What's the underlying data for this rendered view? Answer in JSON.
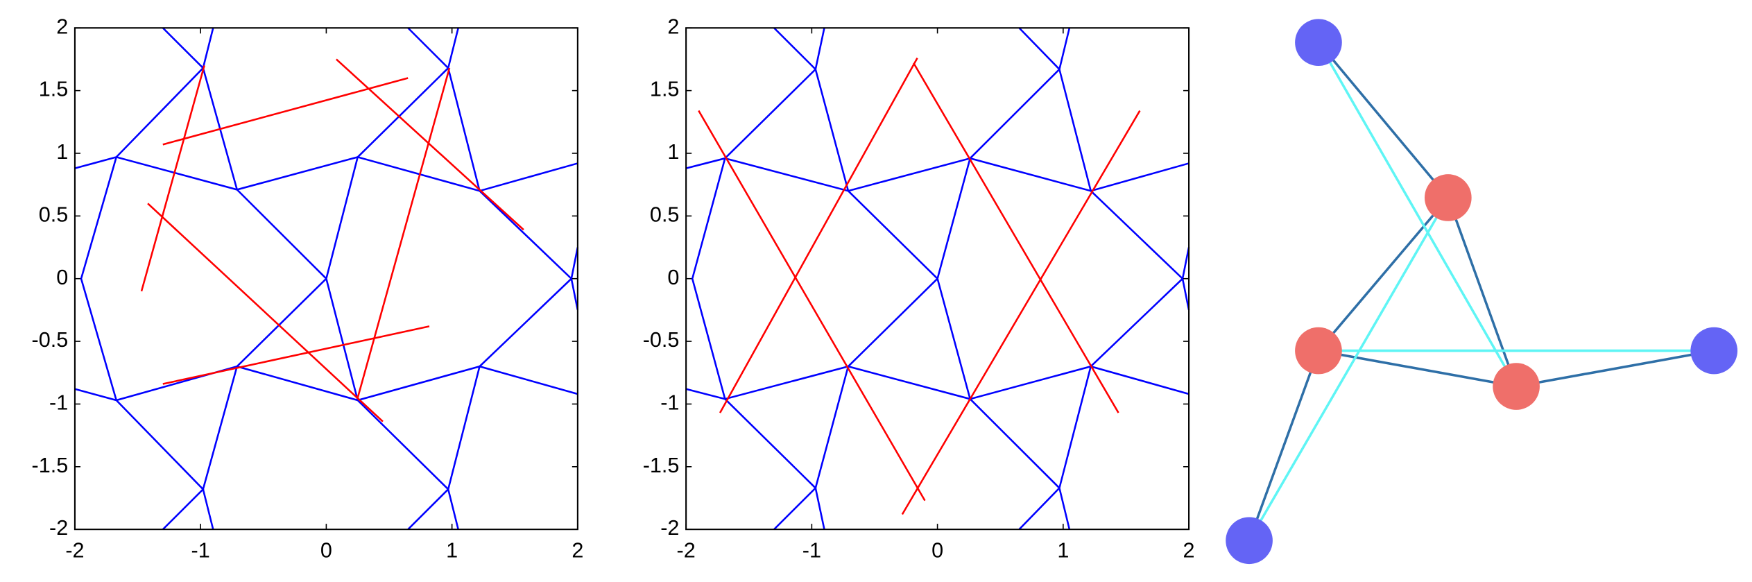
{
  "chart_data": [
    {
      "type": "line",
      "xlim": [
        -2,
        2
      ],
      "ylim": [
        -2,
        2
      ],
      "xticks": [
        -2,
        -1,
        0,
        1,
        2
      ],
      "yticks": [
        -2,
        -1.5,
        -1,
        -0.5,
        0,
        0.5,
        1,
        1.5,
        2
      ],
      "series": [
        {
          "color": "#0000ff",
          "x": [
            -2,
            -1.67,
            -0.71,
            0.25,
            1.22,
            2,
            null,
            -1.3,
            -0.98,
            -0.71,
            0,
            0.25,
            0.97,
            1.05,
            null,
            -0.9,
            -0.98,
            -1.67,
            -1.95,
            -1.67,
            -0.98,
            -1.3,
            null,
            0.65,
            0.97,
            0.25,
            0,
            -0.71,
            -0.98,
            -0.9,
            null,
            1.05,
            0.97,
            1.22,
            1.95,
            1.22,
            0.97,
            0.65,
            null,
            -2,
            -1.67,
            -0.71,
            0.25,
            1.22,
            2,
            null,
            2,
            1.95,
            2
          ],
          "values": [
            0.88,
            0.97,
            0.71,
            0.97,
            0.7,
            0.92,
            null,
            2,
            1.68,
            0.71,
            0,
            -0.97,
            -1.68,
            -2,
            null,
            2,
            1.68,
            0.97,
            0,
            -0.97,
            -1.68,
            -2,
            null,
            2,
            1.68,
            0.97,
            0,
            -0.7,
            -1.68,
            -2,
            null,
            2,
            1.68,
            0.7,
            0,
            -0.7,
            -1.68,
            -2,
            null,
            -0.88,
            -0.97,
            -0.7,
            -0.97,
            -0.7,
            -0.92,
            null,
            0.25,
            0,
            -0.25
          ]
        },
        {
          "color": "#ff0000",
          "x": [
            -1.47,
            -0.97,
            null,
            -1.3,
            0.65,
            null,
            0.08,
            1.57,
            null,
            -1.42,
            0.45,
            null,
            -1.3,
            0.82,
            null,
            0.25,
            0.98
          ],
          "values": [
            -0.1,
            1.7,
            null,
            1.07,
            1.6,
            null,
            1.75,
            0.39,
            null,
            0.6,
            -1.14,
            null,
            -0.84,
            -0.38,
            null,
            -0.95,
            1.68
          ]
        }
      ]
    },
    {
      "type": "line",
      "xlim": [
        -2,
        2
      ],
      "ylim": [
        -2,
        2
      ],
      "xticks": [
        -2,
        -1,
        0,
        1,
        2
      ],
      "yticks": [
        -2,
        -1.5,
        -1,
        -0.5,
        0,
        0.5,
        1,
        1.5,
        2
      ],
      "series": [
        {
          "color": "#0000ff",
          "x": [
            -2,
            -1.69,
            -0.71,
            0.26,
            1.22,
            2,
            null,
            -1.3,
            -0.97,
            -0.71,
            0,
            0.26,
            0.97,
            1.05,
            null,
            -0.9,
            -0.97,
            -1.69,
            -1.95,
            -1.69,
            -0.97,
            -1.3,
            null,
            0.65,
            0.97,
            0.26,
            0,
            -0.71,
            -0.97,
            -0.9,
            null,
            1.05,
            0.97,
            1.22,
            1.95,
            1.22,
            0.97,
            0.65,
            null,
            -2,
            -1.69,
            -0.71,
            0.26,
            1.22,
            2,
            null,
            2,
            1.95,
            2
          ],
          "values": [
            0.88,
            0.96,
            0.7,
            0.96,
            0.7,
            0.92,
            null,
            2,
            1.67,
            0.7,
            0,
            -0.96,
            -1.67,
            -2,
            null,
            2,
            1.67,
            0.96,
            0,
            -0.96,
            -1.67,
            -2,
            null,
            2,
            1.67,
            0.96,
            0,
            -0.7,
            -1.67,
            -2,
            null,
            2,
            1.67,
            0.7,
            0,
            -0.7,
            -1.67,
            -2,
            null,
            -0.88,
            -0.96,
            -0.7,
            -0.96,
            -0.7,
            -0.92,
            null,
            0.25,
            0,
            -0.25
          ]
        },
        {
          "color": "#ff0000",
          "x": [
            -1.9,
            -0.1,
            null,
            -1.73,
            -0.16,
            null,
            -0.28,
            1.61,
            null,
            -0.19,
            1.44
          ],
          "values": [
            1.34,
            -1.77,
            null,
            -1.07,
            1.76,
            null,
            -1.88,
            1.34,
            null,
            1.72,
            -1.07
          ]
        }
      ]
    }
  ]
}
